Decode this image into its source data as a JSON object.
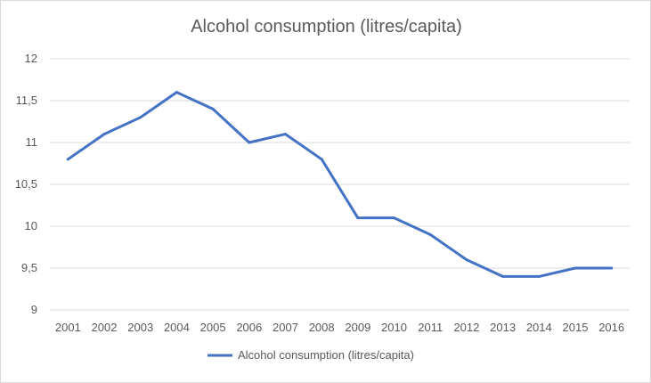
{
  "chart_data": {
    "type": "line",
    "title": "Alcohol consumption (litres/capita)",
    "xlabel": "",
    "ylabel": "",
    "categories": [
      "2001",
      "2002",
      "2003",
      "2004",
      "2005",
      "2006",
      "2007",
      "2008",
      "2009",
      "2010",
      "2011",
      "2012",
      "2013",
      "2014",
      "2015",
      "2016"
    ],
    "series": [
      {
        "name": "Alcohol consumption (litres/capita)",
        "color": "#4472c4",
        "values": [
          10.8,
          11.1,
          11.3,
          11.6,
          11.4,
          11.0,
          11.1,
          10.8,
          10.1,
          10.1,
          9.9,
          9.6,
          9.4,
          9.4,
          9.5,
          9.5
        ]
      }
    ],
    "ylim": [
      9,
      12
    ],
    "yticks": [
      "9",
      "9,5",
      "10",
      "10,5",
      "11",
      "11,5",
      "12"
    ],
    "ytick_values": [
      9,
      9.5,
      10,
      10.5,
      11,
      11.5,
      12
    ],
    "grid": true,
    "legend": "bottom",
    "gridline_color": "#d9d9d9"
  }
}
